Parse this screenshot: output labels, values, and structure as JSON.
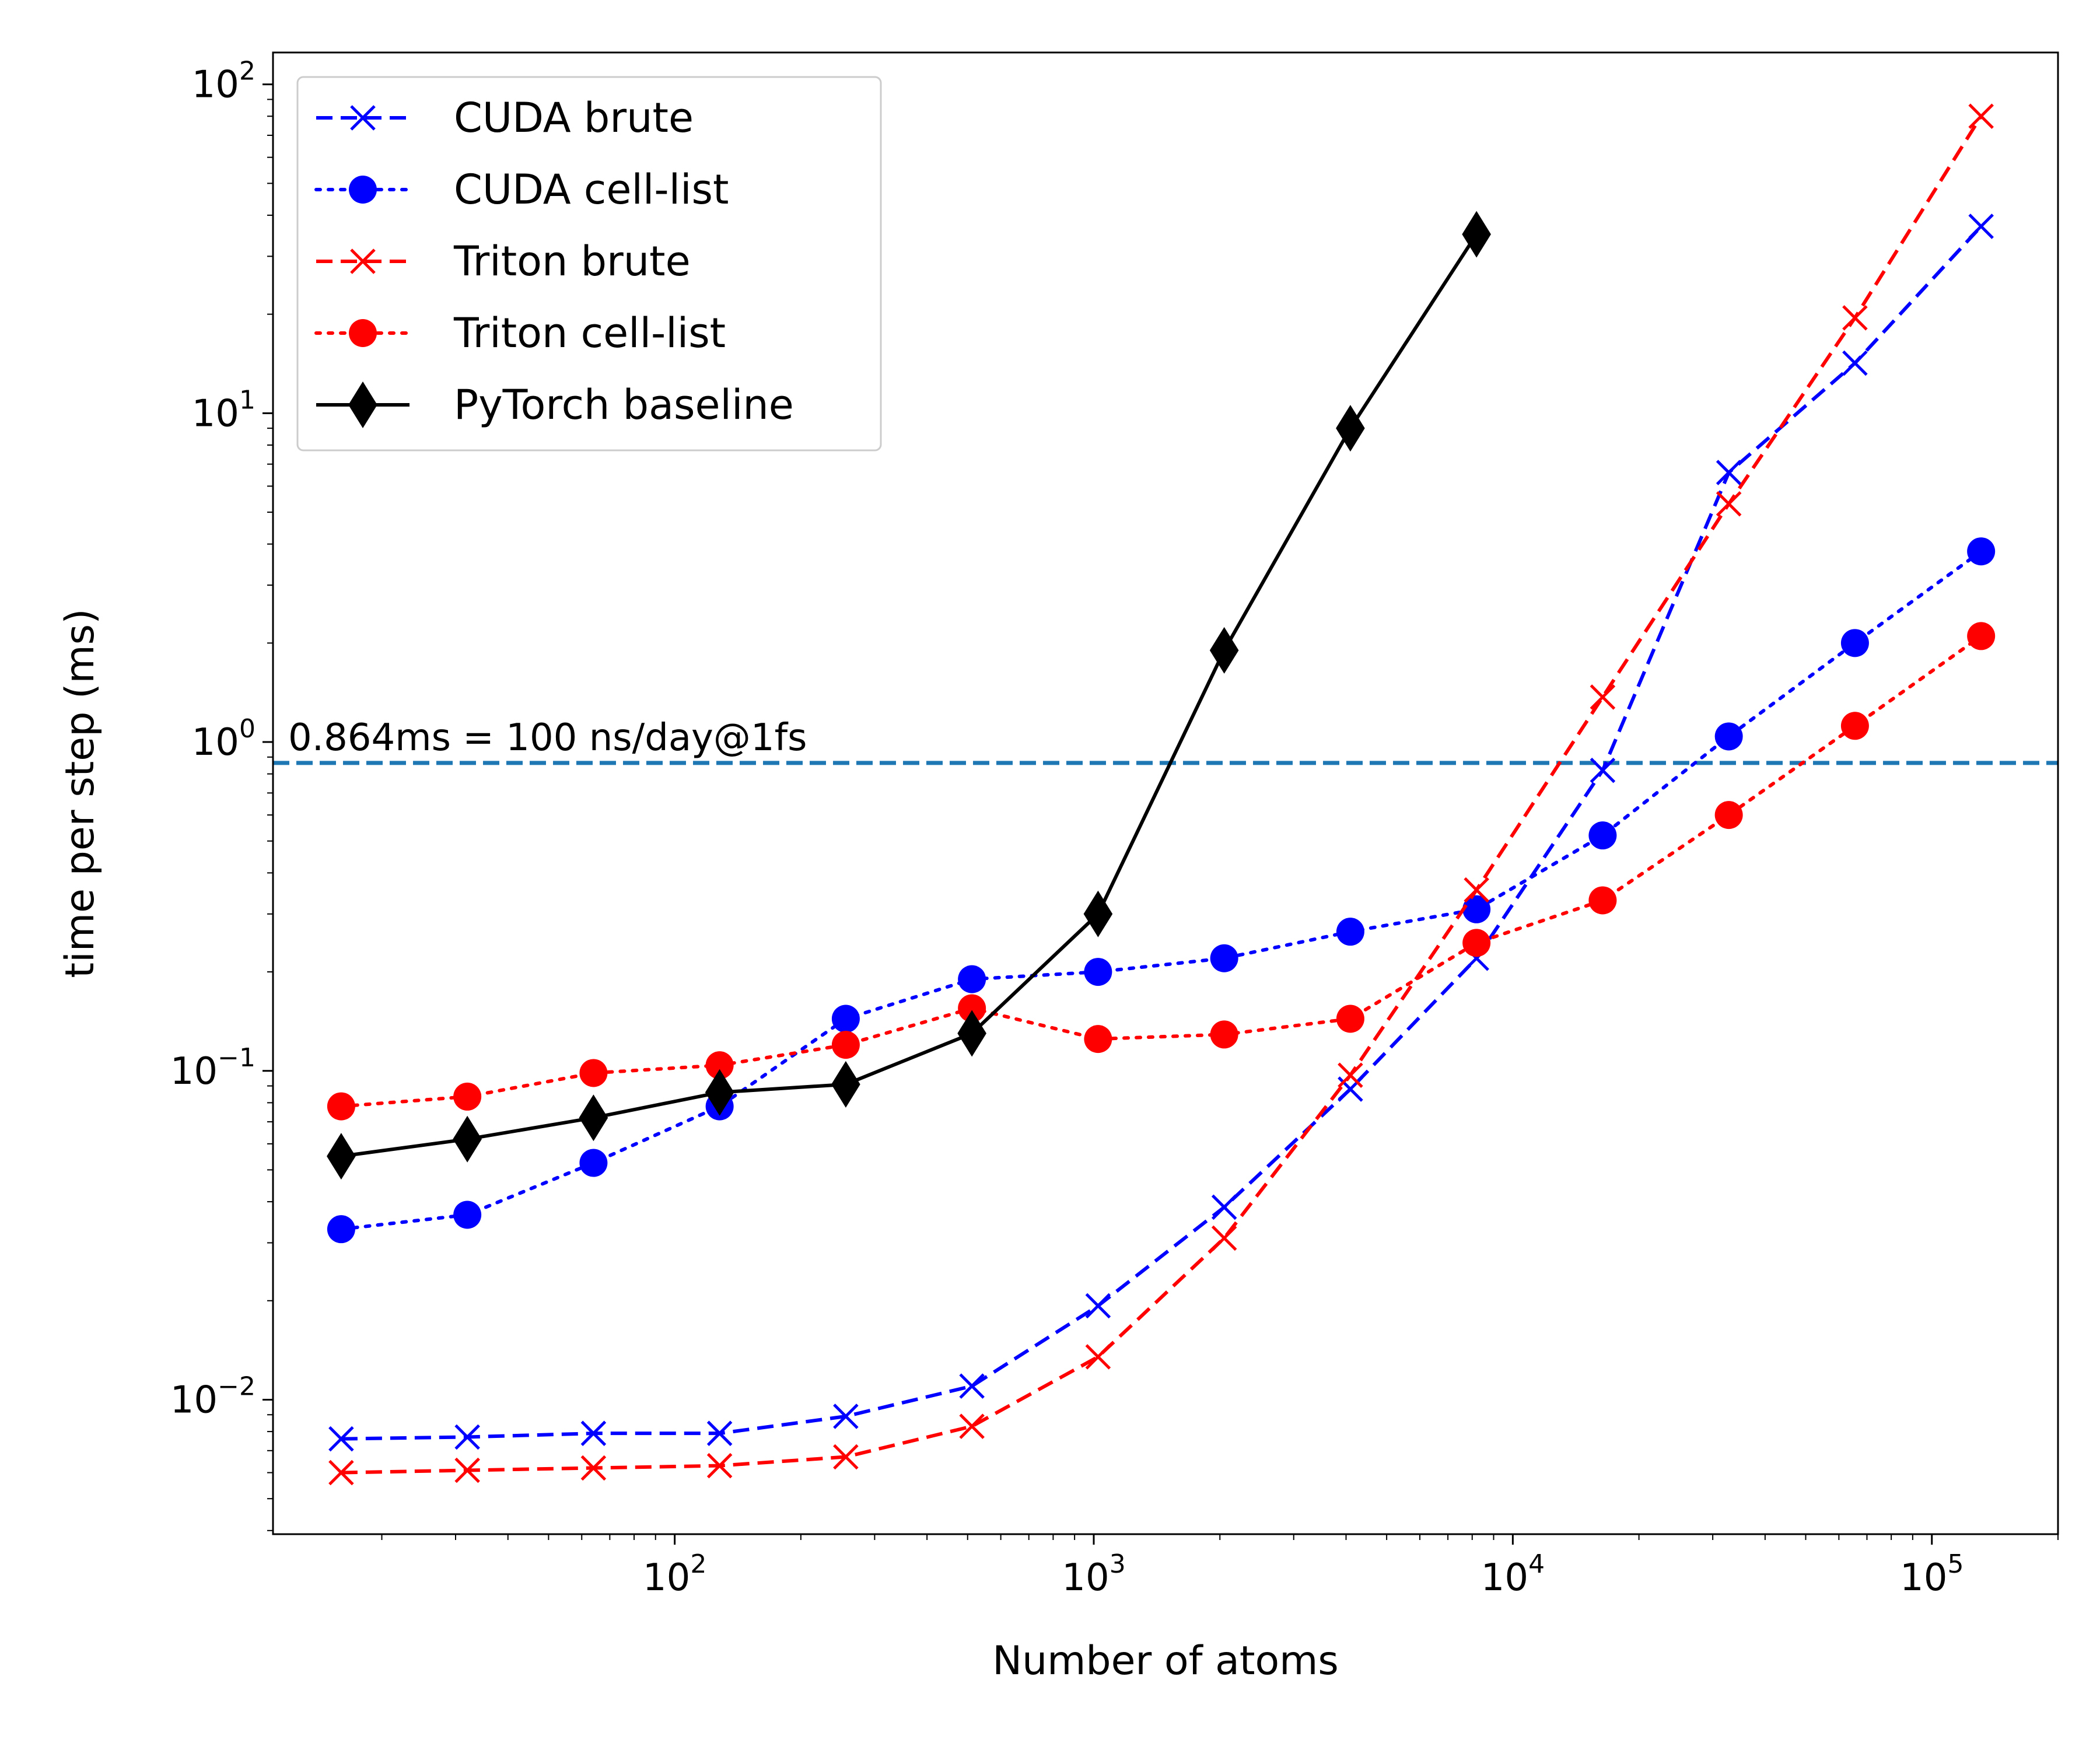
{
  "chart_data": {
    "type": "line",
    "xlabel": "Number of atoms",
    "ylabel": "time per step (ms)",
    "xscale": "log",
    "yscale": "log",
    "xlim": [
      11,
      200000
    ],
    "ylim": [
      0.0039,
      125
    ],
    "x_ticks": [
      {
        "value": 100,
        "base": "10",
        "exp": "2"
      },
      {
        "value": 1000,
        "base": "10",
        "exp": "3"
      },
      {
        "value": 10000,
        "base": "10",
        "exp": "4"
      },
      {
        "value": 100000,
        "base": "10",
        "exp": "5"
      }
    ],
    "y_ticks": [
      {
        "value": 0.01,
        "base": "10",
        "exp": "−2"
      },
      {
        "value": 0.1,
        "base": "10",
        "exp": "−1"
      },
      {
        "value": 1,
        "base": "10",
        "exp": "0"
      },
      {
        "value": 10,
        "base": "10",
        "exp": "1"
      },
      {
        "value": 100,
        "base": "10",
        "exp": "2"
      }
    ],
    "legend_position": "top-left",
    "series": [
      {
        "name": "CUDA brute",
        "color": "#0000ff",
        "line": "dashed",
        "marker": "x",
        "x": [
          16,
          32,
          64,
          128,
          256,
          512,
          1024,
          2048,
          4096,
          8192,
          16384,
          32768,
          65536,
          131072
        ],
        "y": [
          0.0076,
          0.0077,
          0.0079,
          0.0079,
          0.0089,
          0.011,
          0.0193,
          0.0385,
          0.088,
          0.22,
          0.82,
          6.6,
          14.2,
          37
        ]
      },
      {
        "name": "CUDA cell-list",
        "color": "#0000ff",
        "line": "dotted",
        "marker": "circle",
        "x": [
          16,
          32,
          64,
          128,
          256,
          512,
          1024,
          2048,
          4096,
          8192,
          16384,
          32768,
          65536,
          131072
        ],
        "y": [
          0.033,
          0.0365,
          0.0525,
          0.078,
          0.144,
          0.19,
          0.2,
          0.22,
          0.265,
          0.31,
          0.52,
          1.04,
          2.0,
          3.8
        ]
      },
      {
        "name": "Triton brute",
        "color": "#ff0000",
        "line": "dashed",
        "marker": "x",
        "x": [
          16,
          32,
          64,
          128,
          256,
          512,
          1024,
          2048,
          4096,
          8192,
          16384,
          32768,
          65536,
          131072
        ],
        "y": [
          0.006,
          0.0061,
          0.0062,
          0.0063,
          0.0067,
          0.0083,
          0.0135,
          0.031,
          0.097,
          0.355,
          1.37,
          5.3,
          19.5,
          80
        ]
      },
      {
        "name": "Triton cell-list",
        "color": "#ff0000",
        "line": "dotted",
        "marker": "circle",
        "x": [
          16,
          32,
          64,
          128,
          256,
          512,
          1024,
          2048,
          4096,
          8192,
          16384,
          32768,
          65536,
          131072
        ],
        "y": [
          0.078,
          0.0835,
          0.0985,
          0.104,
          0.12,
          0.155,
          0.125,
          0.129,
          0.144,
          0.245,
          0.33,
          0.6,
          1.12,
          2.1
        ]
      },
      {
        "name": "PyTorch baseline",
        "color": "#000000",
        "line": "solid",
        "marker": "diamond",
        "x": [
          16,
          32,
          64,
          128,
          256,
          512,
          1024,
          2048,
          4096,
          8192
        ],
        "y": [
          0.055,
          0.062,
          0.072,
          0.086,
          0.091,
          0.13,
          0.3,
          1.9,
          9.0,
          35
        ]
      }
    ],
    "hline": {
      "y": 0.864,
      "color": "#1f77b4",
      "label": "0.864ms = 100 ns/day@1fs"
    }
  }
}
